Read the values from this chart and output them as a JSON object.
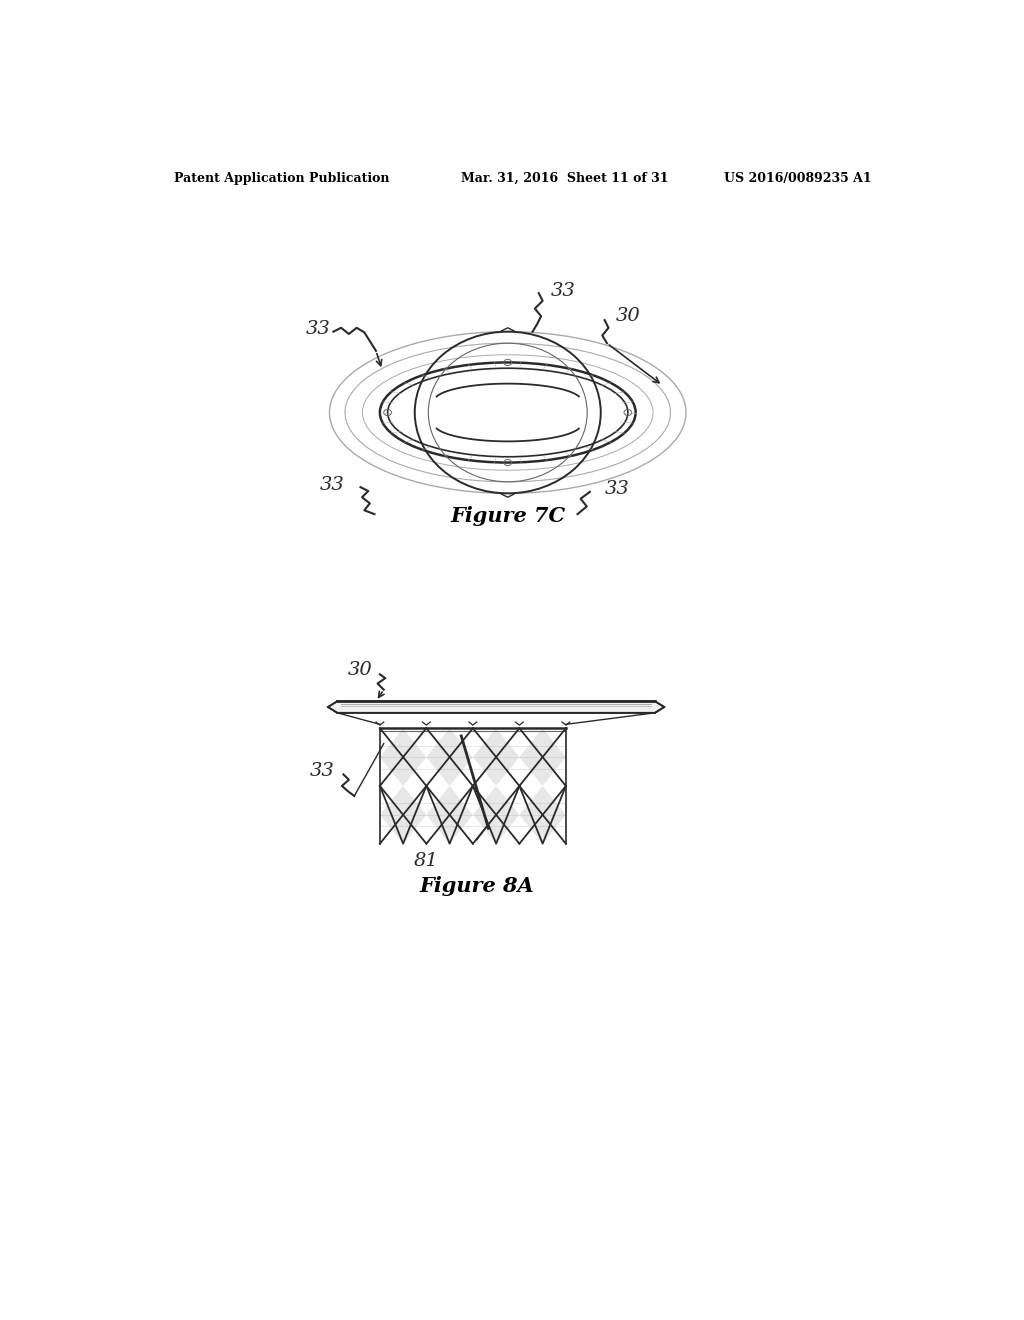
{
  "bg_color": "#ffffff",
  "header_left": "Patent Application Publication",
  "header_mid": "Mar. 31, 2016  Sheet 11 of 31",
  "header_right": "US 2016/0089235 A1",
  "fig7c_caption": "Figure 7C",
  "fig8a_caption": "Figure 8A",
  "line_color": "#2a2a2a",
  "light_line_color": "#aaaaaa",
  "medium_line_color": "#666666"
}
